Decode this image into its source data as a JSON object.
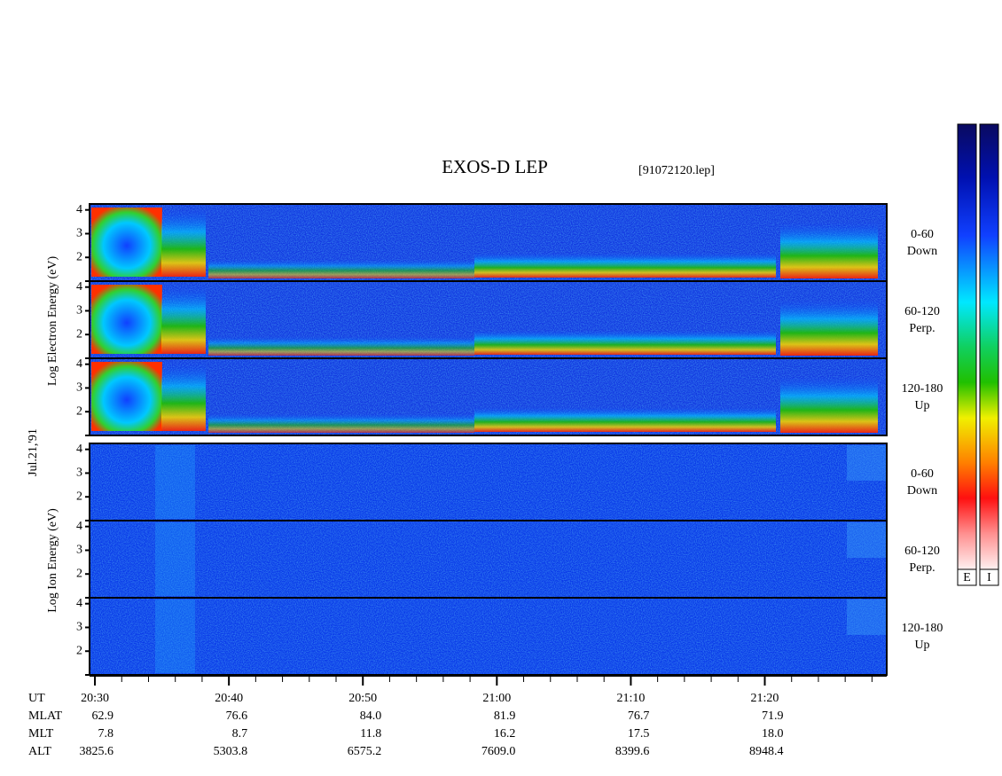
{
  "title": "EXOS-D LEP",
  "file": "[91072120.lep]",
  "date": "Jul.21,'91",
  "electron_axis_label": "Log Electron Energy (eV)",
  "ion_axis_label": "Log Ion Energy (eV)",
  "ylim": [
    1,
    4.25
  ],
  "yticks": [
    2,
    3,
    4
  ],
  "panels": [
    {
      "species": "electron",
      "range": "0-60",
      "direction": "Down"
    },
    {
      "species": "electron",
      "range": "60-120",
      "direction": "Perp."
    },
    {
      "species": "electron",
      "range": "120-180",
      "direction": "Up"
    },
    {
      "species": "ion",
      "range": "0-60",
      "direction": "Down"
    },
    {
      "species": "ion",
      "range": "60-120",
      "direction": "Perp."
    },
    {
      "species": "ion",
      "range": "120-180",
      "direction": "Up"
    }
  ],
  "xlim": [
    1229.6,
    1289.1
  ],
  "minor_tick_step": 2,
  "xticks": [
    {
      "value": 1230,
      "label": "20:30"
    },
    {
      "value": 1240,
      "label": "20:40"
    },
    {
      "value": 1250,
      "label": "20:50"
    },
    {
      "value": 1260,
      "label": "21:00"
    },
    {
      "value": 1270,
      "label": "21:10"
    },
    {
      "value": 1280,
      "label": "21:20"
    }
  ],
  "orbit_table": {
    "time_label": "UT",
    "rows": [
      {
        "label": "MLAT",
        "values": [
          "62.9",
          "76.6",
          "84.0",
          "81.9",
          "76.7",
          "71.9"
        ]
      },
      {
        "label": "MLT",
        "values": [
          "7.8",
          "8.7",
          "11.8",
          "16.2",
          "17.5",
          "18.0"
        ]
      },
      {
        "label": "ALT",
        "values": [
          "3825.6",
          "5303.8",
          "6575.2",
          "7609.0",
          "8399.6",
          "8948.4"
        ]
      }
    ]
  },
  "colorbar_labels": [
    "E",
    "I"
  ]
}
